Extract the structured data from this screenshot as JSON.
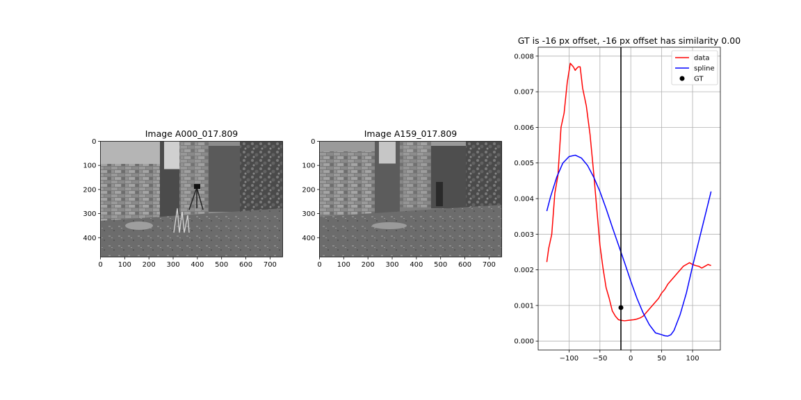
{
  "chart_data": [
    {
      "type": "image",
      "title": "Image A000_017.809",
      "xticks": [
        "0",
        "100",
        "200",
        "300",
        "400",
        "500",
        "600",
        "700"
      ],
      "yticks": [
        "0",
        "100",
        "200",
        "300",
        "400"
      ],
      "xlim": [
        0,
        752
      ],
      "ylim": [
        480,
        0
      ],
      "content": "grayscale photo: brick building corner, tripod, weeds, paved ground"
    },
    {
      "type": "image",
      "title": "Image A159_017.809",
      "xticks": [
        "0",
        "100",
        "200",
        "300",
        "400",
        "500",
        "600",
        "700"
      ],
      "yticks": [
        "0",
        "100",
        "200",
        "300",
        "400"
      ],
      "xlim": [
        0,
        752
      ],
      "ylim": [
        480,
        0
      ],
      "content": "grayscale photo: brick building corner from shifted viewpoint, paved ground"
    },
    {
      "type": "line",
      "title": "GT is -16 px offset, -16 px offset has similarity 0.00",
      "xlim": [
        -150,
        145
      ],
      "ylim": [
        -0.00025,
        0.00825
      ],
      "xticks": [
        -100,
        -50,
        0,
        50,
        100
      ],
      "xtick_labels": [
        "−100",
        "−50",
        "0",
        "50",
        "100"
      ],
      "yticks": [
        0.0,
        0.001,
        0.002,
        0.003,
        0.004,
        0.005,
        0.006,
        0.007,
        0.008
      ],
      "ytick_labels": [
        "0.000",
        "0.001",
        "0.002",
        "0.003",
        "0.004",
        "0.005",
        "0.006",
        "0.007",
        "0.008"
      ],
      "grid": true,
      "legend": "top-right",
      "vline_x": -16,
      "series": [
        {
          "name": "data",
          "color": "#ff0000",
          "x": [
            -136,
            -133,
            -128,
            -123,
            -118,
            -113,
            -108,
            -103,
            -98,
            -93,
            -90,
            -88,
            -85,
            -82,
            -78,
            -72,
            -66,
            -60,
            -55,
            -50,
            -45,
            -40,
            -35,
            -30,
            -25,
            -20,
            -15,
            -10,
            -5,
            0,
            5,
            10,
            15,
            20,
            25,
            30,
            35,
            40,
            45,
            50,
            55,
            60,
            65,
            70,
            75,
            80,
            85,
            90,
            95,
            100,
            105,
            110,
            115,
            120,
            125,
            130
          ],
          "y": [
            0.00222,
            0.0026,
            0.003,
            0.00415,
            0.00465,
            0.006,
            0.0064,
            0.00725,
            0.0078,
            0.0077,
            0.0076,
            0.00765,
            0.0077,
            0.0077,
            0.0071,
            0.0066,
            0.0058,
            0.0047,
            0.0037,
            0.0027,
            0.00205,
            0.0015,
            0.0012,
            0.00085,
            0.0007,
            0.0006,
            0.00058,
            0.00057,
            0.00058,
            0.00059,
            0.0006,
            0.00062,
            0.00065,
            0.0007,
            0.0008,
            0.0009,
            0.001,
            0.0011,
            0.0012,
            0.00135,
            0.00145,
            0.0016,
            0.0017,
            0.0018,
            0.0019,
            0.002,
            0.0021,
            0.00215,
            0.0022,
            0.00215,
            0.00212,
            0.0021,
            0.00205,
            0.0021,
            0.00215,
            0.00212
          ]
        },
        {
          "name": "spline",
          "color": "#0000ff",
          "x": [
            -136,
            -130,
            -120,
            -110,
            -100,
            -90,
            -80,
            -70,
            -60,
            -50,
            -40,
            -30,
            -20,
            -10,
            0,
            10,
            20,
            30,
            40,
            50,
            55,
            60,
            65,
            70,
            80,
            90,
            100,
            110,
            120,
            130
          ],
          "y": [
            0.00365,
            0.00405,
            0.0046,
            0.005,
            0.00518,
            0.00522,
            0.00514,
            0.00493,
            0.0046,
            0.0042,
            0.00372,
            0.0032,
            0.0027,
            0.0022,
            0.00168,
            0.0012,
            0.00079,
            0.00046,
            0.00023,
            0.00018,
            0.00015,
            0.00014,
            0.00018,
            0.0003,
            0.00075,
            0.00135,
            0.0021,
            0.0028,
            0.0035,
            0.0042
          ]
        }
      ],
      "points": [
        {
          "name": "GT",
          "color": "#000000",
          "x": -16,
          "y": 0.00094
        }
      ]
    }
  ]
}
